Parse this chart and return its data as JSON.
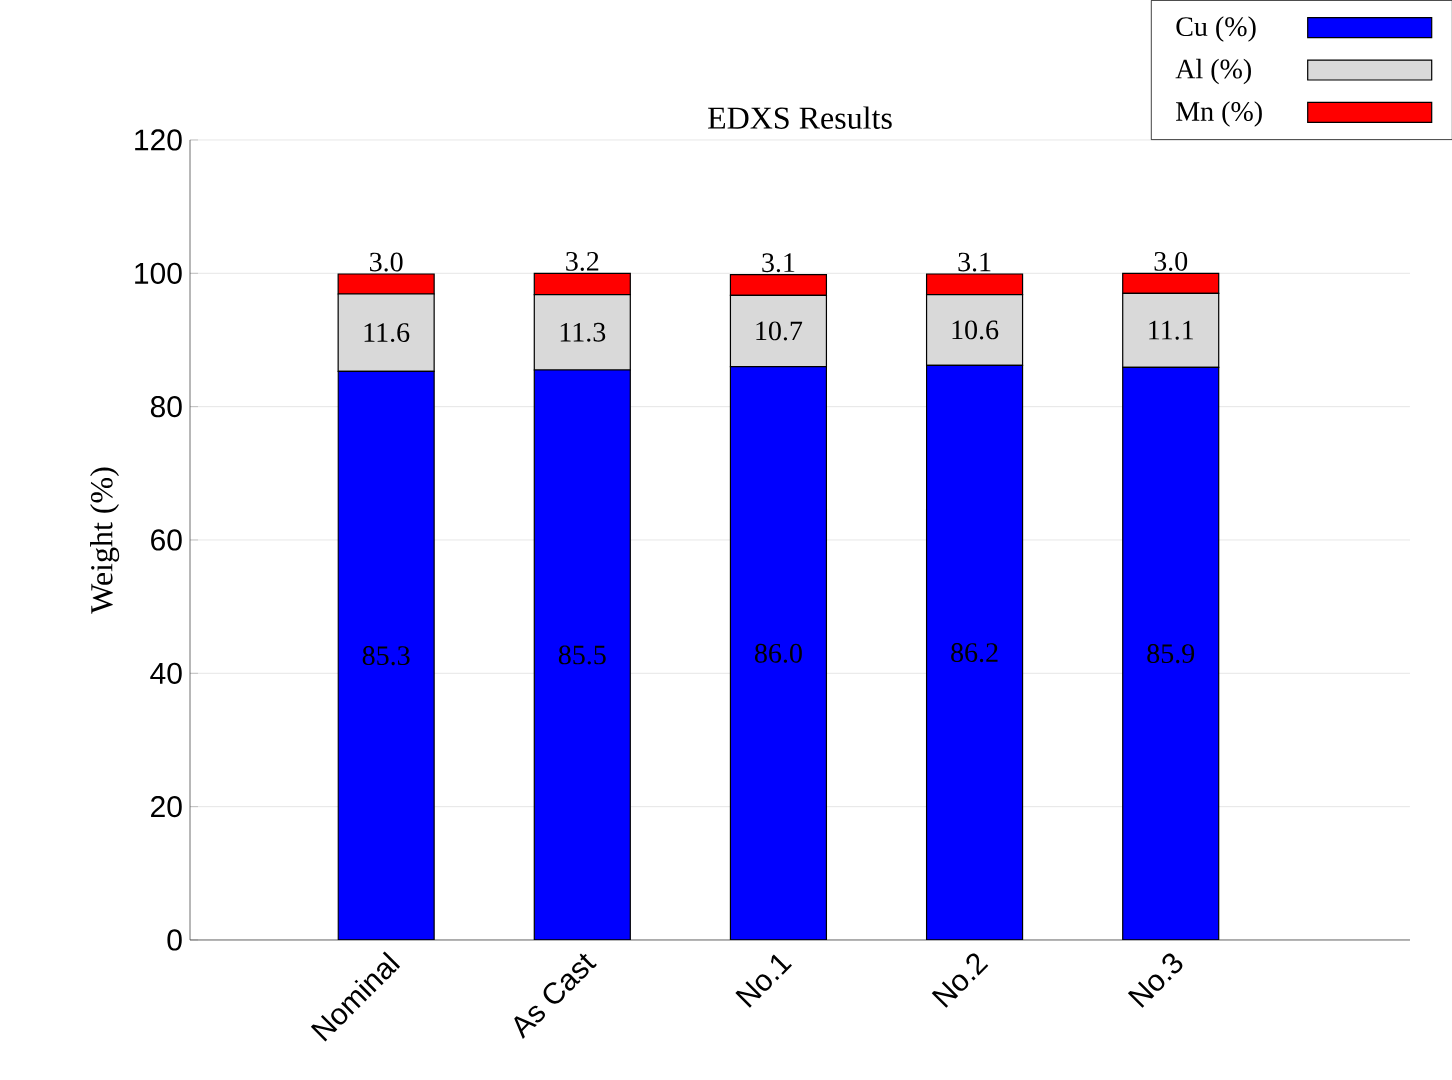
{
  "chart_data": {
    "type": "bar",
    "title": "EDXS Results",
    "ylabel": "Weight (%)",
    "stacked": true,
    "categories": [
      "Nominal",
      "As Cast",
      "No.1",
      "No.2",
      "No.3"
    ],
    "series": [
      {
        "name": "Cu (%)",
        "color": "#0000ff",
        "values": [
          85.3,
          85.5,
          86.0,
          86.2,
          85.9
        ],
        "value_labels": [
          "85.3",
          "85.5",
          "86.0",
          "86.2",
          "85.9"
        ]
      },
      {
        "name": "Al (%)",
        "color": "#d9d9d9",
        "values": [
          11.6,
          11.3,
          10.7,
          10.6,
          11.1
        ],
        "value_labels": [
          "11.6",
          "11.3",
          "10.7",
          "10.6",
          "11.1"
        ]
      },
      {
        "name": "Mn (%)",
        "color": "#ff0000",
        "values": [
          3.0,
          3.2,
          3.1,
          3.1,
          3.0
        ],
        "value_labels": [
          "3.0",
          "3.2",
          "3.1",
          "3.1",
          "3.0"
        ]
      }
    ],
    "ylim": [
      0,
      120
    ],
    "yticks": [
      0,
      20,
      40,
      60,
      80,
      100,
      120
    ],
    "grid": "y",
    "legend": "top right"
  }
}
